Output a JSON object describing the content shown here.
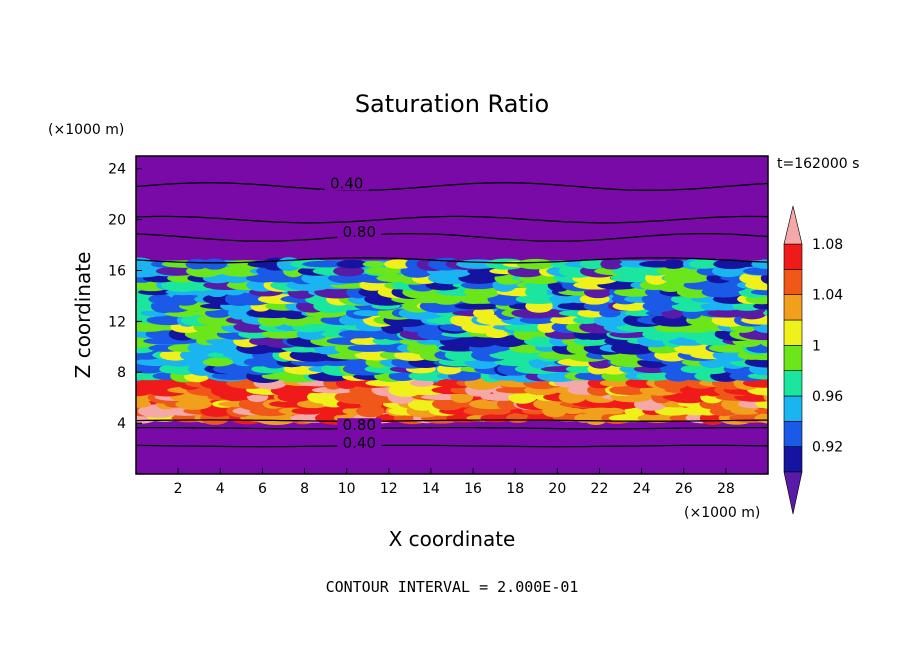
{
  "chart_data": {
    "type": "heatmap",
    "title": "Saturation Ratio",
    "xlabel": "X coordinate",
    "ylabel": "Z coordinate",
    "x_unit": "(×1000 m)",
    "y_unit": "(×1000 m)",
    "xlim": [
      0,
      30
    ],
    "ylim": [
      0,
      25
    ],
    "x_ticks": [
      2,
      4,
      6,
      8,
      10,
      12,
      14,
      16,
      18,
      20,
      22,
      24,
      26,
      28
    ],
    "y_ticks": [
      4,
      8,
      12,
      16,
      20,
      24
    ],
    "time_label": "t=162000 s",
    "footer": "CONTOUR INTERVAL = 2.000E-01",
    "contour_labels": [
      {
        "text": "0.40",
        "x": 10,
        "z": 22.6
      },
      {
        "text": "0.80",
        "x": 10.6,
        "z": 18.8
      },
      {
        "text": "0.80",
        "x": 10.6,
        "z": 3.6
      },
      {
        "text": "0.40",
        "x": 10.6,
        "z": 2.2
      }
    ],
    "colorbar": {
      "labels": [
        "1.08",
        "1.04",
        "1",
        "0.96",
        "0.92"
      ],
      "levels": [
        0.92,
        0.94,
        0.96,
        0.98,
        1.0,
        1.02,
        1.04,
        1.06,
        1.08,
        1.1
      ],
      "colors": [
        "#5a1aa8",
        "#1414a0",
        "#1a5ae6",
        "#1ab4f0",
        "#1ae6a0",
        "#6ae61a",
        "#f0f01a",
        "#f0a01a",
        "#f0581a",
        "#f01a1a",
        "#f4a8a8"
      ],
      "extend": "both"
    },
    "bands": [
      {
        "z0": 0,
        "z1": 4.2,
        "value": 0.4
      },
      {
        "z0": 4.2,
        "z1": 7.2,
        "value": 1.08
      },
      {
        "z0": 7.2,
        "z1": 16.8,
        "value": 0.97
      },
      {
        "z0": 16.8,
        "z1": 25,
        "value": 0.6
      }
    ]
  }
}
